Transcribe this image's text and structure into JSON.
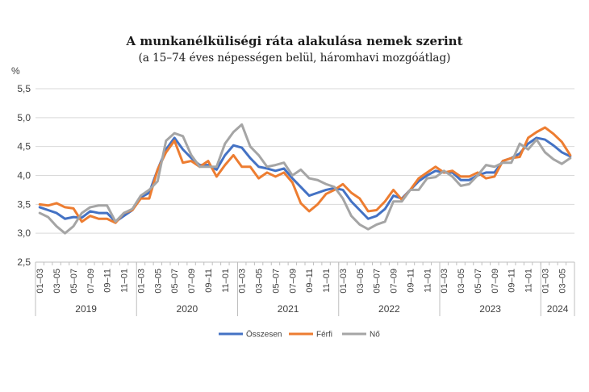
{
  "chart_data": {
    "type": "line",
    "title": "A munkanélküliségi  ráta alakulása nemek szerint",
    "subtitle": "(a 15–74 éves népességen belül, háromhavi mozgóátlag)",
    "ylabel": "%",
    "ylim": [
      2.5,
      5.5
    ],
    "yticks": [
      "2,5",
      "3,0",
      "3,5",
      "4,0",
      "4,5",
      "5,0",
      "5,5"
    ],
    "ytick_values": [
      2.5,
      3.0,
      3.5,
      4.0,
      4.5,
      5.0,
      5.5
    ],
    "x_labels": [
      "01‒03",
      "",
      "03‒05",
      "",
      "05‒07",
      "",
      "07‒09",
      "",
      "09‒11",
      "",
      "11‒01",
      "",
      "01‒03",
      "",
      "03‒05",
      "",
      "05‒07",
      "",
      "07‒09",
      "",
      "09‒11",
      "",
      "11‒01",
      "",
      "01‒03",
      "",
      "03‒05",
      "",
      "05‒07",
      "",
      "07‒09",
      "",
      "09‒11",
      "",
      "11‒01",
      "",
      "01‒03",
      "",
      "03‒05",
      "",
      "05‒07",
      "",
      "07‒09",
      "",
      "09‒11",
      "",
      "11‒01",
      "",
      "01‒03",
      "",
      "03‒05",
      "",
      "05‒07",
      "",
      "07‒09",
      "",
      "09‒11",
      "",
      "11‒01",
      "",
      "01‒03",
      "",
      "03‒05",
      ""
    ],
    "years": [
      {
        "label": "2019",
        "start": 0,
        "count": 12
      },
      {
        "label": "2020",
        "start": 12,
        "count": 12
      },
      {
        "label": "2021",
        "start": 24,
        "count": 12
      },
      {
        "label": "2022",
        "start": 36,
        "count": 12
      },
      {
        "label": "2023",
        "start": 48,
        "count": 12
      },
      {
        "label": "2024",
        "start": 60,
        "count": 4
      }
    ],
    "series": [
      {
        "name": "Összesen",
        "color": "#4472c4",
        "values": [
          3.45,
          3.4,
          3.35,
          3.25,
          3.28,
          3.27,
          3.38,
          3.35,
          3.35,
          3.2,
          3.3,
          3.4,
          3.62,
          3.7,
          4.1,
          4.45,
          4.65,
          4.45,
          4.3,
          4.18,
          4.18,
          4.1,
          4.35,
          4.52,
          4.48,
          4.3,
          4.15,
          4.12,
          4.08,
          4.12,
          3.95,
          3.8,
          3.65,
          3.7,
          3.75,
          3.78,
          3.75,
          3.55,
          3.4,
          3.25,
          3.3,
          3.42,
          3.65,
          3.6,
          3.75,
          3.9,
          4.0,
          4.08,
          4.05,
          4.05,
          3.92,
          3.92,
          4.0,
          4.05,
          4.05,
          4.25,
          4.3,
          4.38,
          4.55,
          4.65,
          4.62,
          4.52,
          4.4,
          4.33
        ]
      },
      {
        "name": "Férfi",
        "color": "#ed7d31",
        "values": [
          3.5,
          3.48,
          3.52,
          3.45,
          3.43,
          3.2,
          3.3,
          3.25,
          3.25,
          3.18,
          3.35,
          3.4,
          3.6,
          3.6,
          4.1,
          4.4,
          4.6,
          4.22,
          4.25,
          4.15,
          4.25,
          3.98,
          4.18,
          4.35,
          4.15,
          4.15,
          3.95,
          4.05,
          3.98,
          4.05,
          3.88,
          3.52,
          3.38,
          3.5,
          3.68,
          3.75,
          3.85,
          3.7,
          3.6,
          3.38,
          3.4,
          3.55,
          3.75,
          3.58,
          3.75,
          3.95,
          4.05,
          4.15,
          4.05,
          4.08,
          3.98,
          3.98,
          4.05,
          3.95,
          3.98,
          4.25,
          4.3,
          4.32,
          4.65,
          4.75,
          4.83,
          4.72,
          4.58,
          4.35
        ]
      },
      {
        "name": "Nő",
        "color": "#a5a5a5",
        "values": [
          3.35,
          3.28,
          3.12,
          3.0,
          3.12,
          3.35,
          3.45,
          3.48,
          3.48,
          3.2,
          3.35,
          3.42,
          3.65,
          3.75,
          3.9,
          4.6,
          4.73,
          4.68,
          4.35,
          4.15,
          4.15,
          4.15,
          4.55,
          4.75,
          4.88,
          4.5,
          4.35,
          4.15,
          4.18,
          4.22,
          4.0,
          4.1,
          3.95,
          3.92,
          3.85,
          3.8,
          3.6,
          3.3,
          3.15,
          3.07,
          3.15,
          3.2,
          3.55,
          3.55,
          3.75,
          3.75,
          3.95,
          3.97,
          4.08,
          3.98,
          3.82,
          3.85,
          4.0,
          4.18,
          4.15,
          4.22,
          4.22,
          4.55,
          4.45,
          4.62,
          4.4,
          4.28,
          4.2,
          4.3
        ]
      }
    ]
  }
}
